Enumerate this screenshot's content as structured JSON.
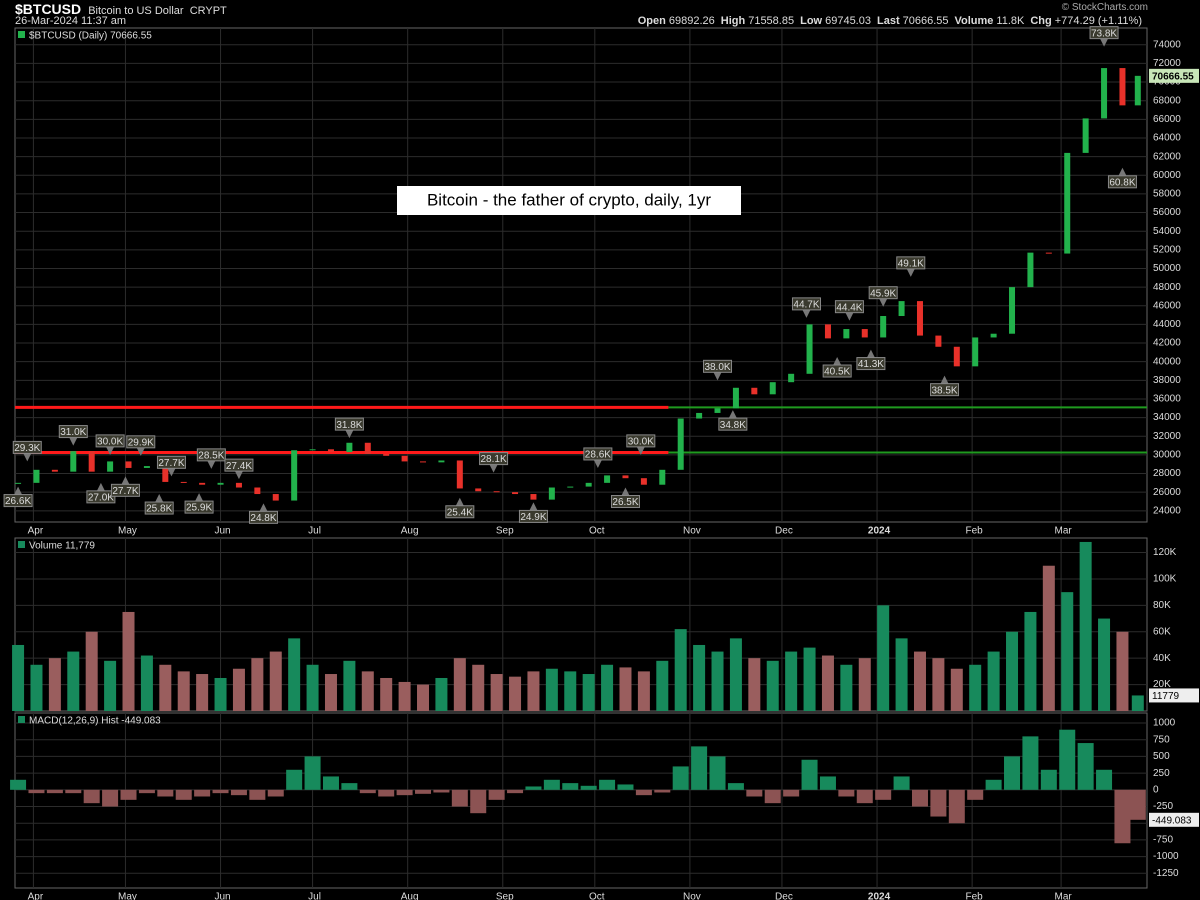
{
  "header": {
    "symbol": "$BTCUSD",
    "name": "Bitcoin to US Dollar",
    "exchange": "CRYPT",
    "timestamp": "26-Mar-2024 11:37 am",
    "quote": [
      [
        "Open",
        "69892.26"
      ],
      [
        "High",
        "71558.85"
      ],
      [
        "Low",
        "69745.03"
      ],
      [
        "Last",
        "70666.55"
      ],
      [
        "Volume",
        "11.8K"
      ],
      [
        "Chg",
        "+774.29 (+1.11%)"
      ]
    ],
    "credit": "© StockCharts.com"
  },
  "chart_data": [
    {
      "type": "candlestick",
      "legend": "$BTCUSD (Daily) 70666.55",
      "note": "Bitcoin - the father of crypto, daily, 1yr",
      "last_label": "70666.55",
      "up_color": "#22b24c",
      "down_color": "#e8312a",
      "grid": true,
      "x": [
        0,
        6,
        12,
        18,
        24,
        30,
        36,
        42,
        48,
        54,
        60,
        66,
        72,
        78,
        84,
        90,
        96,
        102,
        108,
        114,
        120,
        126,
        132,
        138,
        144,
        150,
        156,
        162,
        168,
        174,
        180,
        186,
        192,
        198,
        204,
        210,
        216,
        222,
        228,
        234,
        240,
        246,
        252,
        258,
        264,
        270,
        276,
        282,
        288,
        294,
        300,
        306,
        312,
        318,
        324,
        330,
        336,
        342,
        348,
        354,
        360,
        365
      ],
      "values": [
        27000,
        28400,
        28200,
        30400,
        28200,
        29300,
        28600,
        28800,
        27100,
        27000,
        26800,
        27000,
        26500,
        25800,
        25100,
        30500,
        30600,
        30300,
        31300,
        30100,
        29900,
        29300,
        29200,
        29400,
        26400,
        26100,
        26000,
        25800,
        25200,
        26500,
        26600,
        27000,
        27800,
        27500,
        26800,
        28400,
        33900,
        34500,
        35000,
        37200,
        36500,
        37800,
        38700,
        44000,
        42500,
        43500,
        42600,
        44900,
        46500,
        42800,
        41600,
        39500,
        42600,
        43000,
        48000,
        51700,
        51600,
        62400,
        66100,
        71500,
        67500,
        70666.55
      ],
      "xlim": [
        -1,
        368
      ],
      "xticks": [
        {
          "value": 5,
          "label": "Apr"
        },
        {
          "value": 35,
          "label": "May"
        },
        {
          "value": 66,
          "label": "Jun"
        },
        {
          "value": 96,
          "label": "Jul"
        },
        {
          "value": 127,
          "label": "Aug"
        },
        {
          "value": 158,
          "label": "Sep"
        },
        {
          "value": 188,
          "label": "Oct"
        },
        {
          "value": 219,
          "label": "Nov"
        },
        {
          "value": 249,
          "label": "Dec"
        },
        {
          "value": 280,
          "label": "2024"
        },
        {
          "value": 311,
          "label": "Feb"
        },
        {
          "value": 340,
          "label": "Mar"
        }
      ],
      "ylim": [
        22800,
        75800
      ],
      "yticks": [
        24000,
        26000,
        28000,
        30000,
        32000,
        34000,
        36000,
        38000,
        40000,
        42000,
        44000,
        46000,
        48000,
        50000,
        52000,
        54000,
        56000,
        58000,
        60000,
        62000,
        64000,
        66000,
        68000,
        70000,
        72000,
        74000
      ],
      "levels": [
        35100,
        30250
      ],
      "level_colors": [
        "#ff1a1a",
        "#1f9a1f"
      ],
      "level_break_x": 212,
      "annotations": [
        {
          "text": "26.6K",
          "x": 0,
          "value": 26600,
          "side": "low"
        },
        {
          "text": "29.3K",
          "x": 3,
          "value": 29300,
          "side": "high"
        },
        {
          "text": "31.0K",
          "x": 18,
          "value": 31000,
          "side": "high"
        },
        {
          "text": "27.0K",
          "x": 27,
          "value": 27000,
          "side": "low"
        },
        {
          "text": "30.0K",
          "x": 30,
          "value": 30000,
          "side": "high"
        },
        {
          "text": "27.7K",
          "x": 35,
          "value": 27700,
          "side": "low"
        },
        {
          "text": "29.9K",
          "x": 40,
          "value": 29900,
          "side": "high"
        },
        {
          "text": "25.8K",
          "x": 46,
          "value": 25800,
          "side": "low"
        },
        {
          "text": "27.7K",
          "x": 50,
          "value": 27700,
          "side": "high"
        },
        {
          "text": "25.9K",
          "x": 59,
          "value": 25900,
          "side": "low"
        },
        {
          "text": "28.5K",
          "x": 63,
          "value": 28500,
          "side": "high"
        },
        {
          "text": "27.4K",
          "x": 72,
          "value": 27400,
          "side": "high"
        },
        {
          "text": "24.8K",
          "x": 80,
          "value": 24800,
          "side": "low"
        },
        {
          "text": "31.8K",
          "x": 108,
          "value": 31800,
          "side": "high"
        },
        {
          "text": "25.4K",
          "x": 144,
          "value": 25400,
          "side": "low"
        },
        {
          "text": "28.1K",
          "x": 155,
          "value": 28100,
          "side": "high"
        },
        {
          "text": "24.9K",
          "x": 168,
          "value": 24900,
          "side": "low"
        },
        {
          "text": "28.6K",
          "x": 189,
          "value": 28600,
          "side": "high"
        },
        {
          "text": "26.5K",
          "x": 198,
          "value": 26500,
          "side": "low"
        },
        {
          "text": "30.0K",
          "x": 203,
          "value": 30000,
          "side": "high"
        },
        {
          "text": "38.0K",
          "x": 228,
          "value": 38000,
          "side": "high"
        },
        {
          "text": "34.8K",
          "x": 233,
          "value": 34800,
          "side": "low"
        },
        {
          "text": "44.7K",
          "x": 257,
          "value": 44700,
          "side": "high"
        },
        {
          "text": "40.5K",
          "x": 267,
          "value": 40500,
          "side": "low"
        },
        {
          "text": "44.4K",
          "x": 271,
          "value": 44400,
          "side": "high"
        },
        {
          "text": "41.3K",
          "x": 278,
          "value": 41300,
          "side": "low"
        },
        {
          "text": "45.9K",
          "x": 282,
          "value": 45900,
          "side": "high"
        },
        {
          "text": "49.1K",
          "x": 291,
          "value": 49100,
          "side": "high"
        },
        {
          "text": "38.5K",
          "x": 302,
          "value": 38500,
          "side": "low"
        },
        {
          "text": "73.8K",
          "x": 354,
          "value": 73800,
          "side": "high"
        },
        {
          "text": "60.8K",
          "x": 360,
          "value": 60800,
          "side": "low"
        }
      ]
    },
    {
      "type": "bar",
      "legend": "Volume 11,779",
      "last_label": "11779",
      "up_color": "#178a5c",
      "down_color": "#9a5e5e",
      "grid": true,
      "x": [
        0,
        6,
        12,
        18,
        24,
        30,
        36,
        42,
        48,
        54,
        60,
        66,
        72,
        78,
        84,
        90,
        96,
        102,
        108,
        114,
        120,
        126,
        132,
        138,
        144,
        150,
        156,
        162,
        168,
        174,
        180,
        186,
        192,
        198,
        204,
        210,
        216,
        222,
        228,
        234,
        240,
        246,
        252,
        258,
        264,
        270,
        276,
        282,
        288,
        294,
        300,
        306,
        312,
        318,
        324,
        330,
        336,
        342,
        348,
        354,
        360,
        365
      ],
      "values": [
        50000,
        35000,
        40000,
        45000,
        60000,
        38000,
        75000,
        42000,
        35000,
        30000,
        28000,
        25000,
        32000,
        40000,
        45000,
        55000,
        35000,
        28000,
        38000,
        30000,
        25000,
        22000,
        20000,
        25000,
        40000,
        35000,
        28000,
        26000,
        30000,
        32000,
        30000,
        28000,
        35000,
        33000,
        30000,
        38000,
        62000,
        50000,
        45000,
        55000,
        40000,
        38000,
        45000,
        48000,
        42000,
        35000,
        40000,
        80000,
        55000,
        45000,
        40000,
        32000,
        35000,
        45000,
        60000,
        75000,
        110000,
        90000,
        128000,
        70000,
        60000,
        11779
      ],
      "xlim": [
        -1,
        368
      ],
      "ylim": [
        0,
        131000
      ],
      "yticks": [
        {
          "value": 20000,
          "label": "20K"
        },
        {
          "value": 40000,
          "label": "40K"
        },
        {
          "value": 60000,
          "label": "60K"
        },
        {
          "value": 80000,
          "label": "80K"
        },
        {
          "value": 100000,
          "label": "100K"
        },
        {
          "value": 120000,
          "label": "120K"
        }
      ]
    },
    {
      "type": "histogram-bar",
      "legend": "MACD(12,26,9) Hist -449.083",
      "last_label": "-449.083",
      "up_color": "#178a5c",
      "down_color": "#8c5353",
      "grid": true,
      "x": [
        0,
        6,
        12,
        18,
        24,
        30,
        36,
        42,
        48,
        54,
        60,
        66,
        72,
        78,
        84,
        90,
        96,
        102,
        108,
        114,
        120,
        126,
        132,
        138,
        144,
        150,
        156,
        162,
        168,
        174,
        180,
        186,
        192,
        198,
        204,
        210,
        216,
        222,
        228,
        234,
        240,
        246,
        252,
        258,
        264,
        270,
        276,
        282,
        288,
        294,
        300,
        306,
        312,
        318,
        324,
        330,
        336,
        342,
        348,
        354,
        360,
        365
      ],
      "values": [
        150,
        -50,
        -50,
        -50,
        -200,
        -250,
        -150,
        -50,
        -100,
        -150,
        -100,
        -50,
        -80,
        -150,
        -100,
        300,
        500,
        200,
        100,
        -50,
        -100,
        -80,
        -60,
        -40,
        -250,
        -350,
        -150,
        -50,
        50,
        150,
        100,
        60,
        150,
        80,
        -80,
        -40,
        350,
        650,
        500,
        100,
        -100,
        -200,
        -100,
        450,
        200,
        -100,
        -200,
        -150,
        200,
        -250,
        -400,
        -500,
        -150,
        150,
        500,
        800,
        300,
        900,
        700,
        300,
        -800,
        -449.083
      ],
      "xlim": [
        -1,
        368
      ],
      "xticks": [
        {
          "value": 5,
          "label": "Apr"
        },
        {
          "value": 35,
          "label": "May"
        },
        {
          "value": 66,
          "label": "Jun"
        },
        {
          "value": 96,
          "label": "Jul"
        },
        {
          "value": 127,
          "label": "Aug"
        },
        {
          "value": 158,
          "label": "Sep"
        },
        {
          "value": 188,
          "label": "Oct"
        },
        {
          "value": 219,
          "label": "Nov"
        },
        {
          "value": 249,
          "label": "Dec"
        },
        {
          "value": 280,
          "label": "2024"
        },
        {
          "value": 311,
          "label": "Feb"
        },
        {
          "value": 340,
          "label": "Mar"
        }
      ],
      "ylim": [
        -1470,
        1150
      ],
      "yticks": [
        -1250,
        -1000,
        -750,
        -500,
        -250,
        0,
        250,
        500,
        750,
        1000
      ]
    }
  ]
}
